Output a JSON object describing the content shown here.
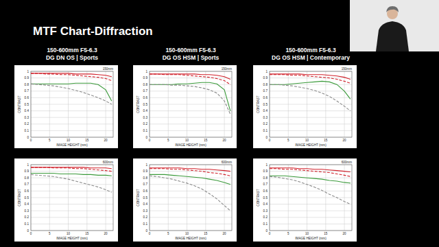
{
  "title": "MTF Chart-Diffraction",
  "chart_data": [
    {
      "type": "line",
      "title": "150-600mm F5-6.3",
      "subtitle": "DG DN OS | Sports",
      "annotation": "150mm",
      "xlabel": "IMAGE HEIGHT (mm)",
      "ylabel": "CONTRAST",
      "grid": true,
      "xlim": [
        0,
        22
      ],
      "xticks": [
        0,
        5,
        10,
        15,
        20
      ],
      "ylim": [
        0,
        1
      ],
      "yticks": [
        0,
        0.1,
        0.2,
        0.3,
        0.4,
        0.5,
        0.6,
        0.7,
        0.8,
        0.9,
        1
      ],
      "x": [
        0,
        2,
        4,
        6,
        8,
        10,
        12,
        14,
        16,
        18,
        20,
        21.6
      ],
      "series": [
        {
          "color": "#d0202a",
          "line_style": "solid",
          "values": [
            0.97,
            0.97,
            0.97,
            0.97,
            0.97,
            0.97,
            0.96,
            0.96,
            0.96,
            0.95,
            0.94,
            0.92
          ]
        },
        {
          "color": "#d0202a",
          "line_style": "dashed",
          "values": [
            0.97,
            0.97,
            0.96,
            0.96,
            0.95,
            0.95,
            0.94,
            0.93,
            0.92,
            0.91,
            0.89,
            0.86
          ]
        },
        {
          "color": "#3a9a3a",
          "line_style": "solid",
          "values": [
            0.81,
            0.81,
            0.81,
            0.81,
            0.81,
            0.81,
            0.82,
            0.82,
            0.82,
            0.8,
            0.72,
            0.55
          ]
        },
        {
          "color": "#8a8a8a",
          "line_style": "dashed",
          "values": [
            0.81,
            0.8,
            0.79,
            0.78,
            0.76,
            0.74,
            0.71,
            0.68,
            0.64,
            0.6,
            0.55,
            0.5
          ]
        }
      ]
    },
    {
      "type": "line",
      "title": "150-600mm F5-6.3",
      "subtitle": "DG OS HSM | Sports",
      "annotation": "150mm",
      "xlabel": "IMAGE HEIGHT (mm)",
      "ylabel": "CONTRAST",
      "grid": true,
      "xlim": [
        0,
        22
      ],
      "xticks": [
        0,
        5,
        10,
        15,
        20
      ],
      "ylim": [
        0,
        1
      ],
      "yticks": [
        0,
        0.1,
        0.2,
        0.3,
        0.4,
        0.5,
        0.6,
        0.7,
        0.8,
        0.9,
        1
      ],
      "x": [
        0,
        2,
        4,
        6,
        8,
        10,
        12,
        14,
        16,
        18,
        20,
        21.6
      ],
      "series": [
        {
          "color": "#d0202a",
          "line_style": "solid",
          "values": [
            0.96,
            0.96,
            0.96,
            0.96,
            0.96,
            0.96,
            0.96,
            0.95,
            0.95,
            0.94,
            0.92,
            0.88
          ]
        },
        {
          "color": "#d0202a",
          "line_style": "dashed",
          "values": [
            0.96,
            0.96,
            0.95,
            0.95,
            0.95,
            0.94,
            0.93,
            0.92,
            0.91,
            0.89,
            0.86,
            0.8
          ]
        },
        {
          "color": "#3a9a3a",
          "line_style": "solid",
          "values": [
            0.8,
            0.8,
            0.8,
            0.8,
            0.81,
            0.81,
            0.82,
            0.83,
            0.83,
            0.81,
            0.72,
            0.4
          ]
        },
        {
          "color": "#8a8a8a",
          "line_style": "dashed",
          "values": [
            0.8,
            0.8,
            0.8,
            0.79,
            0.79,
            0.78,
            0.77,
            0.75,
            0.72,
            0.67,
            0.55,
            0.35
          ]
        }
      ]
    },
    {
      "type": "line",
      "title": "150-600mm F5-6.3",
      "subtitle": "DG OS HSM | Contemporary",
      "annotation": "150mm",
      "xlabel": "IMAGE HEIGHT (mm)",
      "ylabel": "CONTRAST",
      "grid": true,
      "xlim": [
        0,
        22
      ],
      "xticks": [
        0,
        5,
        10,
        15,
        20
      ],
      "ylim": [
        0,
        1
      ],
      "yticks": [
        0,
        0.1,
        0.2,
        0.3,
        0.4,
        0.5,
        0.6,
        0.7,
        0.8,
        0.9,
        1
      ],
      "x": [
        0,
        2,
        4,
        6,
        8,
        10,
        12,
        14,
        16,
        18,
        20,
        21.6
      ],
      "series": [
        {
          "color": "#d0202a",
          "line_style": "solid",
          "values": [
            0.96,
            0.96,
            0.96,
            0.96,
            0.96,
            0.95,
            0.95,
            0.95,
            0.94,
            0.93,
            0.91,
            0.88
          ]
        },
        {
          "color": "#d0202a",
          "line_style": "dashed",
          "values": [
            0.95,
            0.95,
            0.95,
            0.94,
            0.94,
            0.93,
            0.92,
            0.91,
            0.9,
            0.88,
            0.85,
            0.82
          ]
        },
        {
          "color": "#3a9a3a",
          "line_style": "solid",
          "values": [
            0.8,
            0.8,
            0.8,
            0.81,
            0.82,
            0.83,
            0.84,
            0.85,
            0.84,
            0.8,
            0.7,
            0.58
          ]
        },
        {
          "color": "#8a8a8a",
          "line_style": "dashed",
          "values": [
            0.8,
            0.8,
            0.79,
            0.78,
            0.76,
            0.74,
            0.71,
            0.67,
            0.62,
            0.55,
            0.47,
            0.4
          ]
        }
      ]
    },
    {
      "type": "line",
      "annotation": "600mm",
      "xlabel": "IMAGE HEIGHT (mm)",
      "ylabel": "CONTRAST",
      "grid": true,
      "xlim": [
        0,
        22
      ],
      "xticks": [
        0,
        5,
        10,
        15,
        20
      ],
      "ylim": [
        0,
        1
      ],
      "yticks": [
        0,
        0.1,
        0.2,
        0.3,
        0.4,
        0.5,
        0.6,
        0.7,
        0.8,
        0.9,
        1
      ],
      "x": [
        0,
        2,
        4,
        6,
        8,
        10,
        12,
        14,
        16,
        18,
        20,
        21.6
      ],
      "series": [
        {
          "color": "#d0202a",
          "line_style": "solid",
          "values": [
            0.96,
            0.96,
            0.96,
            0.96,
            0.96,
            0.96,
            0.96,
            0.96,
            0.95,
            0.95,
            0.95,
            0.94
          ]
        },
        {
          "color": "#d0202a",
          "line_style": "dashed",
          "values": [
            0.96,
            0.96,
            0.96,
            0.95,
            0.95,
            0.95,
            0.94,
            0.94,
            0.93,
            0.92,
            0.91,
            0.9
          ]
        },
        {
          "color": "#3a9a3a",
          "line_style": "solid",
          "values": [
            0.87,
            0.87,
            0.87,
            0.87,
            0.86,
            0.86,
            0.86,
            0.85,
            0.85,
            0.84,
            0.84,
            0.83
          ]
        },
        {
          "color": "#8a8a8a",
          "line_style": "dashed",
          "values": [
            0.85,
            0.84,
            0.83,
            0.82,
            0.8,
            0.78,
            0.75,
            0.72,
            0.69,
            0.66,
            0.62,
            0.58
          ]
        }
      ]
    },
    {
      "type": "line",
      "annotation": "600mm",
      "xlabel": "IMAGE HEIGHT (mm)",
      "ylabel": "CONTRAST",
      "grid": true,
      "xlim": [
        0,
        22
      ],
      "xticks": [
        0,
        5,
        10,
        15,
        20
      ],
      "ylim": [
        0,
        1
      ],
      "yticks": [
        0,
        0.1,
        0.2,
        0.3,
        0.4,
        0.5,
        0.6,
        0.7,
        0.8,
        0.9,
        1
      ],
      "x": [
        0,
        2,
        4,
        6,
        8,
        10,
        12,
        14,
        16,
        18,
        20,
        21.6
      ],
      "series": [
        {
          "color": "#d0202a",
          "line_style": "solid",
          "values": [
            0.95,
            0.95,
            0.95,
            0.95,
            0.95,
            0.94,
            0.94,
            0.93,
            0.93,
            0.92,
            0.91,
            0.9
          ]
        },
        {
          "color": "#d0202a",
          "line_style": "dashed",
          "values": [
            0.94,
            0.94,
            0.94,
            0.93,
            0.93,
            0.92,
            0.91,
            0.9,
            0.88,
            0.87,
            0.85,
            0.83
          ]
        },
        {
          "color": "#3a9a3a",
          "line_style": "solid",
          "values": [
            0.85,
            0.85,
            0.85,
            0.84,
            0.83,
            0.82,
            0.81,
            0.8,
            0.78,
            0.76,
            0.73,
            0.7
          ]
        },
        {
          "color": "#8a8a8a",
          "line_style": "dashed",
          "values": [
            0.83,
            0.82,
            0.8,
            0.78,
            0.75,
            0.72,
            0.68,
            0.63,
            0.56,
            0.48,
            0.38,
            0.3
          ]
        }
      ]
    },
    {
      "type": "line",
      "annotation": "600mm",
      "xlabel": "IMAGE HEIGHT (mm)",
      "ylabel": "CONTRAST",
      "grid": true,
      "xlim": [
        0,
        22
      ],
      "xticks": [
        0,
        5,
        10,
        15,
        20
      ],
      "ylim": [
        0,
        1
      ],
      "yticks": [
        0,
        0.1,
        0.2,
        0.3,
        0.4,
        0.5,
        0.6,
        0.7,
        0.8,
        0.9,
        1
      ],
      "x": [
        0,
        2,
        4,
        6,
        8,
        10,
        12,
        14,
        16,
        18,
        20,
        21.6
      ],
      "series": [
        {
          "color": "#d0202a",
          "line_style": "solid",
          "values": [
            0.95,
            0.95,
            0.95,
            0.95,
            0.94,
            0.94,
            0.93,
            0.93,
            0.92,
            0.91,
            0.9,
            0.89
          ]
        },
        {
          "color": "#d0202a",
          "line_style": "dashed",
          "values": [
            0.94,
            0.94,
            0.93,
            0.93,
            0.92,
            0.91,
            0.9,
            0.89,
            0.88,
            0.86,
            0.84,
            0.82
          ]
        },
        {
          "color": "#3a9a3a",
          "line_style": "solid",
          "values": [
            0.83,
            0.83,
            0.83,
            0.82,
            0.81,
            0.8,
            0.79,
            0.78,
            0.76,
            0.75,
            0.73,
            0.72
          ]
        },
        {
          "color": "#8a8a8a",
          "line_style": "dashed",
          "values": [
            0.82,
            0.81,
            0.79,
            0.77,
            0.74,
            0.7,
            0.66,
            0.61,
            0.55,
            0.5,
            0.44,
            0.4
          ]
        }
      ]
    }
  ]
}
